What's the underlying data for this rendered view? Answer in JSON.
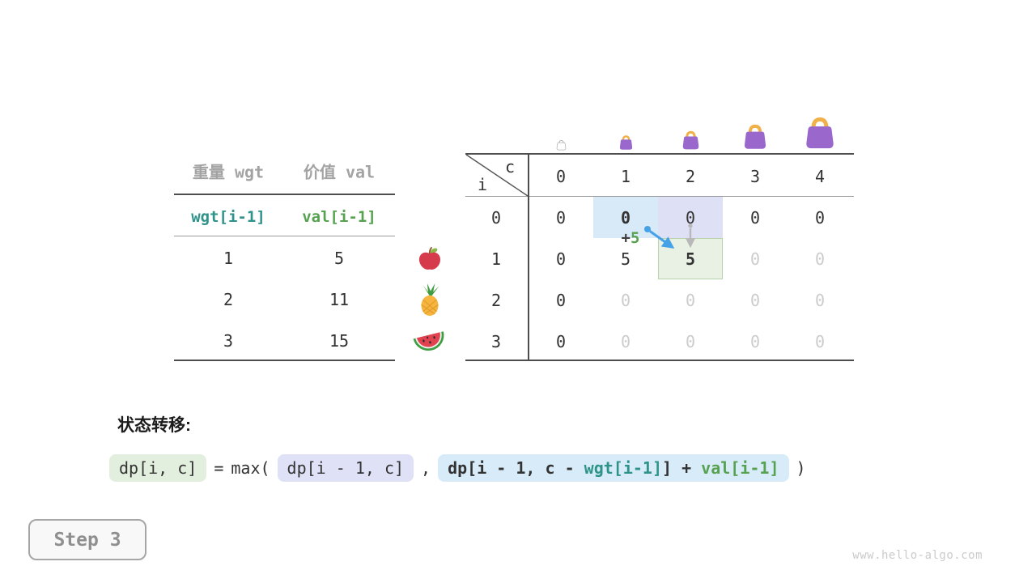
{
  "items_table": {
    "col_headers": [
      "重量 wgt",
      "价值 val"
    ],
    "index_row": {
      "wgt": "wgt[i-1]",
      "val": "val[i-1]"
    },
    "rows": [
      {
        "wgt": "1",
        "val": "5",
        "icon": "apple-icon"
      },
      {
        "wgt": "2",
        "val": "11",
        "icon": "pineapple-icon"
      },
      {
        "wgt": "3",
        "val": "15",
        "icon": "watermelon-icon"
      }
    ]
  },
  "dp_table": {
    "corner": {
      "row_var": "i",
      "col_var": "c"
    },
    "col_headers": [
      "0",
      "1",
      "2",
      "3",
      "4"
    ],
    "row_headers": [
      "0",
      "1",
      "2",
      "3"
    ],
    "rows": [
      {
        "cells": [
          {
            "t": "0"
          },
          {
            "t": "0",
            "bold": true
          },
          {
            "t": "0"
          },
          {
            "t": "0"
          },
          {
            "t": "0"
          }
        ]
      },
      {
        "cells": [
          {
            "t": "0"
          },
          {
            "t": "5"
          },
          {
            "t": "5",
            "bold": true
          },
          {
            "t": "0",
            "dim": true
          },
          {
            "t": "0",
            "dim": true
          }
        ]
      },
      {
        "cells": [
          {
            "t": "0"
          },
          {
            "t": "0",
            "dim": true
          },
          {
            "t": "0",
            "dim": true
          },
          {
            "t": "0",
            "dim": true
          },
          {
            "t": "0",
            "dim": true
          }
        ]
      },
      {
        "cells": [
          {
            "t": "0"
          },
          {
            "t": "0",
            "dim": true
          },
          {
            "t": "0",
            "dim": true
          },
          {
            "t": "0",
            "dim": true
          },
          {
            "t": "0",
            "dim": true
          }
        ]
      }
    ],
    "highlights": [
      {
        "row": 0,
        "col": 1,
        "color": "blue"
      },
      {
        "row": 0,
        "col": 2,
        "color": "lavender"
      },
      {
        "row": 1,
        "col": 2,
        "color": "green"
      }
    ],
    "annotation": {
      "operator": "+",
      "value": "5"
    },
    "capacity_icons": [
      "empty-bag-outline-icon",
      "bag-icon-capacity-1",
      "bag-icon-capacity-2",
      "bag-icon-capacity-3",
      "bag-icon-capacity-4"
    ]
  },
  "formula": {
    "heading": "状态转移:",
    "tokens": {
      "lhs": "dp[i, c]",
      "equals": "=",
      "max_open": "max(",
      "arg1": "dp[i - 1, c]",
      "comma": ",",
      "arg2_prefix": "dp[i - 1, c - ",
      "arg2_wgt": "wgt[i-1]",
      "arg2_mid": "] + ",
      "arg2_val": "val[i-1]",
      "close_paren": ")"
    }
  },
  "step_badge": {
    "label": "Step 3"
  },
  "watermark": "www.hello-algo.com",
  "colors": {
    "teal": "#2e938a",
    "green": "#57a251",
    "text_dark": "#333333",
    "text_gray": "#a3a3a3",
    "text_dim": "#cccccc",
    "purple_bag": "#9a67cc",
    "bag_handle": "#f0b14a",
    "arrow_blue": "#45a1e8",
    "arrow_gray": "#b8b8b8",
    "hl_blue": "#d8e9f7",
    "hl_lavender": "#dee0f5",
    "hl_green": "#e8f1e3",
    "hl_green_border": "#b6d3ac",
    "box_green": "#e3efde",
    "box_lavender": "#dfe1f7",
    "box_blue": "#d7ebf9"
  }
}
